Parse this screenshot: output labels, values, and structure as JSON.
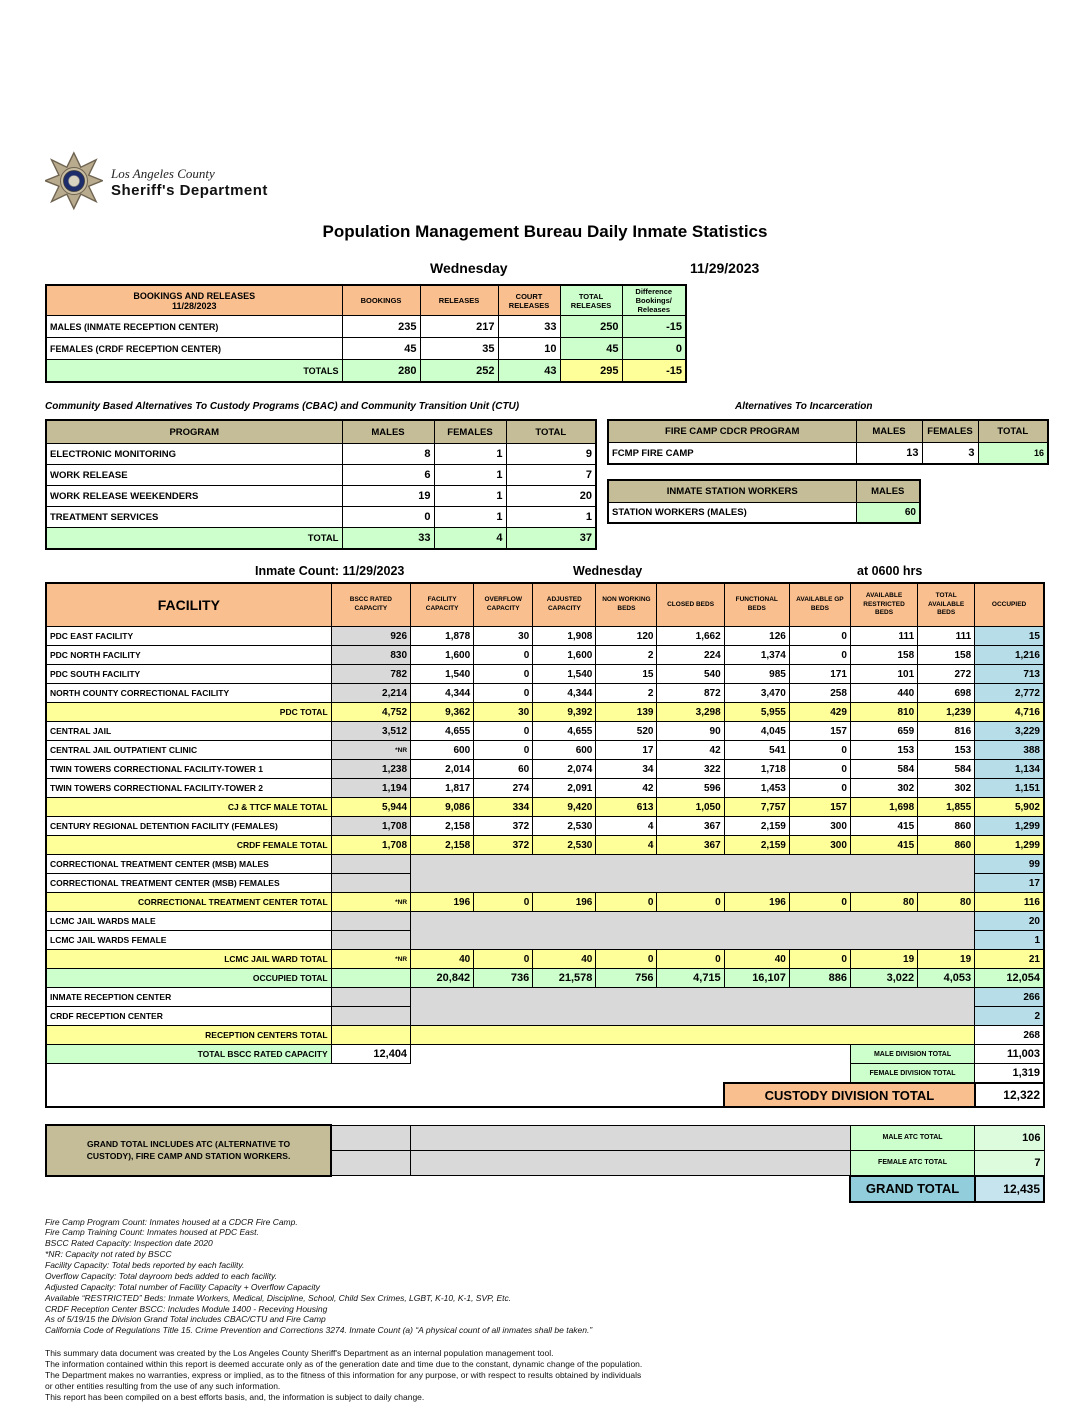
{
  "logo": {
    "county": "Los Angeles County",
    "department": "Sheriff's Department"
  },
  "title": "Population Management Bureau Daily Inmate Statistics",
  "report": {
    "day": "Wednesday",
    "date": "11/29/2023",
    "count_label": "Inmate Count: 11/29/2023",
    "count_day": "Wednesday",
    "count_time": "at 0600 hrs"
  },
  "colors": {
    "header_peach": "#FABF8F",
    "total_yellow": "#FFFF99",
    "green": "#CCFFCC",
    "occupied_blue": "#B7DEE8",
    "tan": "#C4BD97",
    "gray": "#D9D9D9",
    "grand_blue": "#92CDDC"
  },
  "bookings_table": {
    "header_title": "BOOKINGS AND RELEASES",
    "header_date": "11/28/2023",
    "columns": [
      "BOOKINGS",
      "RELEASES",
      "COURT RELEASES",
      "TOTAL RELEASES",
      "Difference Bookings/ Releases"
    ],
    "rows": [
      {
        "label": "MALES (INMATE RECEPTION CENTER)",
        "values": [
          "235",
          "217",
          "33",
          "250",
          "-15"
        ]
      },
      {
        "label": "FEMALES (CRDF RECEPTION CENTER)",
        "values": [
          "45",
          "35",
          "10",
          "45",
          "0"
        ]
      }
    ],
    "totals": {
      "label": "TOTALS",
      "values": [
        "280",
        "252",
        "43",
        "295",
        "-15"
      ]
    }
  },
  "cbac_table": {
    "title": "Community Based Alternatives To Custody Programs (CBAC) and Community Transition Unit (CTU)",
    "columns": [
      "PROGRAM",
      "MALES",
      "FEMALES",
      "TOTAL"
    ],
    "rows": [
      {
        "label": "ELECTRONIC MONITORING",
        "values": [
          "8",
          "1",
          "9"
        ]
      },
      {
        "label": "WORK RELEASE",
        "values": [
          "6",
          "1",
          "7"
        ]
      },
      {
        "label": "WORK RELEASE WEEKENDERS",
        "values": [
          "19",
          "1",
          "20"
        ]
      },
      {
        "label": "TREATMENT SERVICES",
        "values": [
          "0",
          "1",
          "1"
        ]
      }
    ],
    "totals": {
      "label": "TOTAL",
      "values": [
        "33",
        "4",
        "37"
      ]
    }
  },
  "alternatives": {
    "title": "Alternatives To Incarceration",
    "fire_camp": {
      "header": "FIRE CAMP CDCR PROGRAM",
      "columns": [
        "MALES",
        "FEMALES",
        "TOTAL"
      ],
      "row": {
        "label": "FCMP FIRE CAMP",
        "values": [
          "13",
          "3",
          "16"
        ]
      }
    },
    "station_workers": {
      "header": "INMATE STATION WORKERS",
      "column": "MALES",
      "row": {
        "label": "STATION WORKERS (MALES)",
        "value": "60"
      }
    }
  },
  "facility_table": {
    "columns": [
      "FACILITY",
      "BSCC RATED CAPACITY",
      "FACILITY CAPACITY",
      "OVERFLOW CAPACITY",
      "ADJUSTED CAPACITY",
      "NON WORKING BEDS",
      "CLOSED BEDS",
      "FUNCTIONAL BEDS",
      "AVAILABLE GP BEDS",
      "AVAILABLE RESTRICTED BEDS",
      "TOTAL AVAILABLE BEDS",
      "OCCUPIED"
    ],
    "rows": [
      {
        "label": "PDC EAST FACILITY",
        "type": "facility",
        "values": [
          "926",
          "1,878",
          "30",
          "1,908",
          "120",
          "1,662",
          "126",
          "0",
          "111",
          "111",
          "15"
        ]
      },
      {
        "label": "PDC NORTH FACILITY",
        "type": "facility",
        "values": [
          "830",
          "1,600",
          "0",
          "1,600",
          "2",
          "224",
          "1,374",
          "0",
          "158",
          "158",
          "1,216"
        ]
      },
      {
        "label": "PDC SOUTH FACILITY",
        "type": "facility",
        "values": [
          "782",
          "1,540",
          "0",
          "1,540",
          "15",
          "540",
          "985",
          "171",
          "101",
          "272",
          "713"
        ]
      },
      {
        "label": "NORTH COUNTY CORRECTIONAL FACILITY",
        "type": "facility",
        "values": [
          "2,214",
          "4,344",
          "0",
          "4,344",
          "2",
          "872",
          "3,470",
          "258",
          "440",
          "698",
          "2,772"
        ]
      },
      {
        "label": "PDC TOTAL",
        "type": "subtotal",
        "values": [
          "4,752",
          "9,362",
          "30",
          "9,392",
          "139",
          "3,298",
          "5,955",
          "429",
          "810",
          "1,239",
          "4,716"
        ]
      },
      {
        "label": "CENTRAL JAIL",
        "type": "facility",
        "values": [
          "3,512",
          "4,655",
          "0",
          "4,655",
          "520",
          "90",
          "4,045",
          "157",
          "659",
          "816",
          "3,229"
        ]
      },
      {
        "label": "CENTRAL JAIL OUTPATIENT CLINIC",
        "type": "facility",
        "values": [
          "*NR",
          "600",
          "0",
          "600",
          "17",
          "42",
          "541",
          "0",
          "153",
          "153",
          "388"
        ]
      },
      {
        "label": "TWIN TOWERS CORRECTIONAL FACILITY-TOWER 1",
        "type": "facility",
        "values": [
          "1,238",
          "2,014",
          "60",
          "2,074",
          "34",
          "322",
          "1,718",
          "0",
          "584",
          "584",
          "1,134"
        ]
      },
      {
        "label": "TWIN TOWERS CORRECTIONAL FACILITY-TOWER 2",
        "type": "facility",
        "values": [
          "1,194",
          "1,817",
          "274",
          "2,091",
          "42",
          "596",
          "1,453",
          "0",
          "302",
          "302",
          "1,151"
        ]
      },
      {
        "label": "CJ & TTCF MALE TOTAL",
        "type": "subtotal",
        "values": [
          "5,944",
          "9,086",
          "334",
          "9,420",
          "613",
          "1,050",
          "7,757",
          "157",
          "1,698",
          "1,855",
          "5,902"
        ]
      },
      {
        "label": "CENTURY REGIONAL DETENTION FACILITY (FEMALES)",
        "type": "facility",
        "values": [
          "1,708",
          "2,158",
          "372",
          "2,530",
          "4",
          "367",
          "2,159",
          "300",
          "415",
          "860",
          "1,299"
        ]
      },
      {
        "label": "CRDF FEMALE TOTAL",
        "type": "subtotal",
        "values": [
          "1,708",
          "2,158",
          "372",
          "2,530",
          "4",
          "367",
          "2,159",
          "300",
          "415",
          "860",
          "1,299"
        ]
      },
      {
        "label": "CORRECTIONAL TREATMENT CENTER (MSB) MALES",
        "type": "gray_first",
        "occupied": "99"
      },
      {
        "label": "CORRECTIONAL TREATMENT CENTER (MSB) FEMALES",
        "type": "gray_second",
        "occupied": "17"
      },
      {
        "label": "CORRECTIONAL TREATMENT CENTER  TOTAL",
        "type": "subtotal",
        "values": [
          "*NR",
          "196",
          "0",
          "196",
          "0",
          "0",
          "196",
          "0",
          "80",
          "80",
          "116"
        ]
      },
      {
        "label": "LCMC JAIL WARDS MALE",
        "type": "gray_first",
        "occupied": "20"
      },
      {
        "label": "LCMC JAIL WARDS FEMALE",
        "type": "gray_second",
        "occupied": "1"
      },
      {
        "label": "LCMC JAIL WARD TOTAL",
        "type": "subtotal",
        "values": [
          "*NR",
          "40",
          "0",
          "40",
          "0",
          "0",
          "40",
          "0",
          "19",
          "19",
          "21"
        ]
      },
      {
        "label": "OCCUPIED TOTAL",
        "type": "occupied_total",
        "values": [
          "",
          "20,842",
          "736",
          "21,578",
          "756",
          "4,715",
          "16,107",
          "886",
          "3,022",
          "4,053",
          "12,054"
        ]
      },
      {
        "label": "INMATE RECEPTION CENTER",
        "type": "gray_first",
        "occupied": "266"
      },
      {
        "label": "CRDF RECEPTION CENTER",
        "type": "gray_second",
        "occupied": "2"
      },
      {
        "label": "RECEPTION CENTERS TOTAL",
        "type": "yellow_span",
        "occupied": "268"
      }
    ],
    "bscc_total": {
      "label": "TOTAL BSCC RATED CAPACITY",
      "value": "12,404"
    },
    "division_totals": [
      {
        "label": "MALE DIVISION TOTAL",
        "value": "11,003"
      },
      {
        "label": "FEMALE DIVISION TOTAL",
        "value": "1,319"
      }
    ],
    "custody_total": {
      "label": "CUSTODY DIVISION TOTAL",
      "value": "12,322"
    }
  },
  "atc_block": {
    "note_line1": "GRAND TOTAL INCLUDES ATC (ALTERNATIVE TO",
    "note_line2": "CUSTODY), FIRE CAMP AND STATION WORKERS.",
    "rows": [
      {
        "label": "MALE ATC TOTAL",
        "value": "106"
      },
      {
        "label": "FEMALE ATC TOTAL",
        "value": "7"
      }
    ],
    "grand_total": {
      "label": "GRAND TOTAL",
      "value": "12,435"
    }
  },
  "footnotes": [
    "Fire Camp Program Count: Inmates housed at a CDCR Fire Camp.",
    "Fire Camp Training Count: Inmates housed at PDC East.",
    "BSCC Rated Capacity: Inspection date 2020",
    "*NR: Capacity not rated by BSCC",
    "Facility Capacity: Total beds reported by each facility.",
    "Overflow Capacity: Total dayroom beds added to each facility.",
    "Adjusted Capacity: Total number of Facility Capacity + Overflow Capacity",
    "Available “RESTRICTED” Beds: Inmate Workers, Medical, Discipline, School, Child Sex Crimes,  LGBT, K-10, K-1, SVP, Etc.",
    "CRDF Reception Center BSCC: Includes Module 1400 - Receving Housing",
    "As of 5/19/15 the Division Grand Total includes CBAC/CTU and Fire Camp",
    "California Code of Regulations Title 15. Crime Prevention and Corrections 3274. Inmate Count (a) “A physical count of all inmates shall be taken.”"
  ],
  "disclaimer": [
    "This summary data document was created by the Los Angeles County Sheriff's Department as an internal population management tool.",
    "The information contained within this report is deemed accurate only as of the generation date and time due to the constant, dynamic change of the population.",
    "The Department makes no warranties, express or implied, as to the fitness of this information for any purpose, or with respect to results obtained by individuals",
    "or other entities resulting from the use of any such information.",
    "This report has been compiled on a best efforts basis, and, the information is subject to daily change."
  ]
}
